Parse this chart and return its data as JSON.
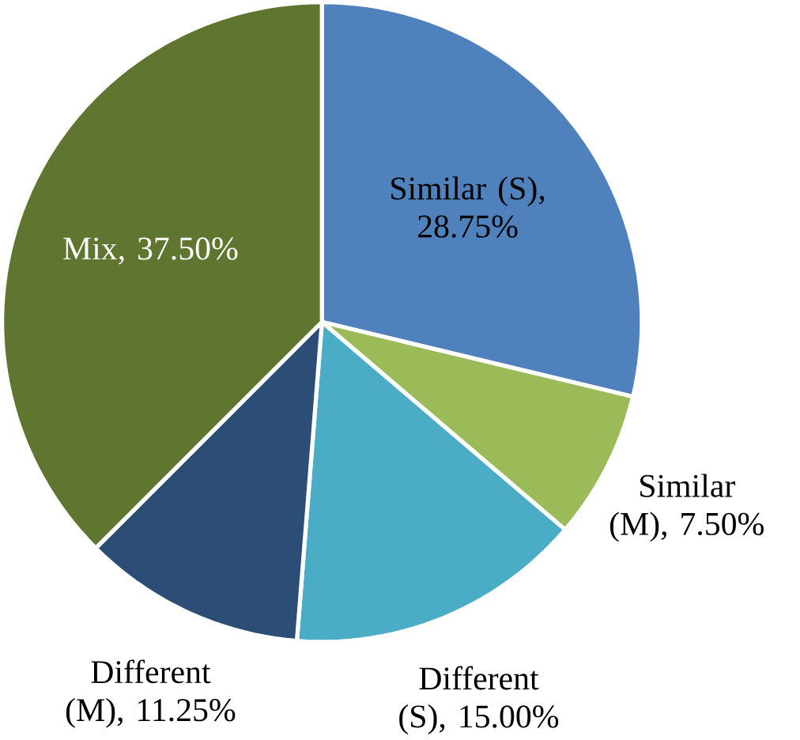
{
  "chart_data": {
    "type": "pie",
    "categories": [
      "Similar (S)",
      "Similar (M)",
      "Different (S)",
      "Different (M)",
      "Mix"
    ],
    "values": [
      28.75,
      7.5,
      15,
      11.25,
      37.5
    ],
    "value_labels": [
      ", 28.75%",
      ", 7.50%",
      ", 15.00%",
      ", 11.25%",
      ", 37.50%"
    ],
    "colors": [
      "#4f81bd",
      "#9bbb59",
      "#4bacc6",
      "#2c4d75",
      "#5f7530"
    ]
  }
}
